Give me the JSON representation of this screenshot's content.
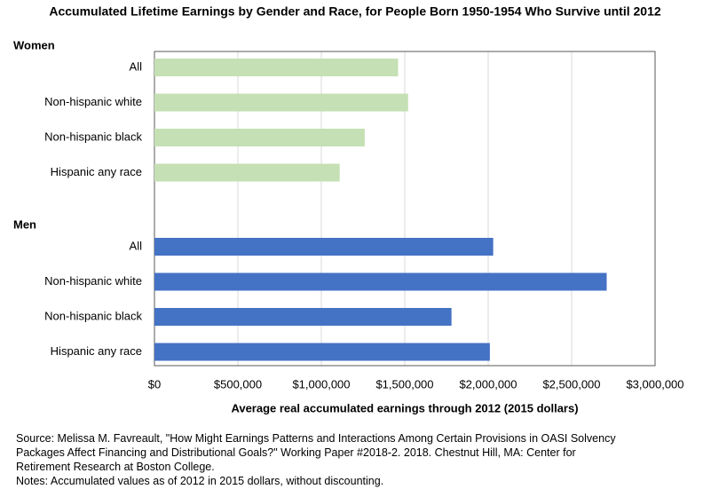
{
  "chart_data": {
    "type": "bar",
    "orientation": "horizontal",
    "title": "Accumulated Lifetime Earnings by Gender and Race, for People Born 1950-1954 Who Survive until 2012",
    "xlabel": "Average real accumulated earnings through 2012 (2015 dollars)",
    "groups": [
      {
        "name": "Women",
        "color": "#c5e0b4",
        "categories": [
          "All",
          "Non-hispanic white",
          "Non-hispanic black",
          "Hispanic any race"
        ],
        "values": [
          1460000,
          1520000,
          1260000,
          1110000
        ]
      },
      {
        "name": "Men",
        "color": "#4472c4",
        "categories": [
          "All",
          "Non-hispanic white",
          "Non-hispanic black",
          "Hispanic any race"
        ],
        "values": [
          2030000,
          2710000,
          1780000,
          2010000
        ]
      }
    ],
    "xlim": [
      0,
      3000000
    ],
    "xticks": [
      {
        "value": 0,
        "label": "$0"
      },
      {
        "value": 500000,
        "label": "$500,000"
      },
      {
        "value": 1000000,
        "label": "$1,000,000"
      },
      {
        "value": 1500000,
        "label": "$1,500,000"
      },
      {
        "value": 2000000,
        "label": "$2,000,000"
      },
      {
        "value": 2500000,
        "label": "$2,500,000"
      },
      {
        "value": 3000000,
        "label": "$3,000,000"
      }
    ],
    "grid": true,
    "source": "Source: Melissa M. Favreault, \"How Might Earnings Patterns and Interactions Among Certain Provisions in OASI Solvency Packages Affect Financing and Distributional Goals?\" Working Paper #2018-2. 2018. Chestnut Hill, MA: Center for Retirement Research at Boston College.",
    "notes": "Notes: Accumulated values as of 2012 in 2015 dollars, without discounting."
  }
}
